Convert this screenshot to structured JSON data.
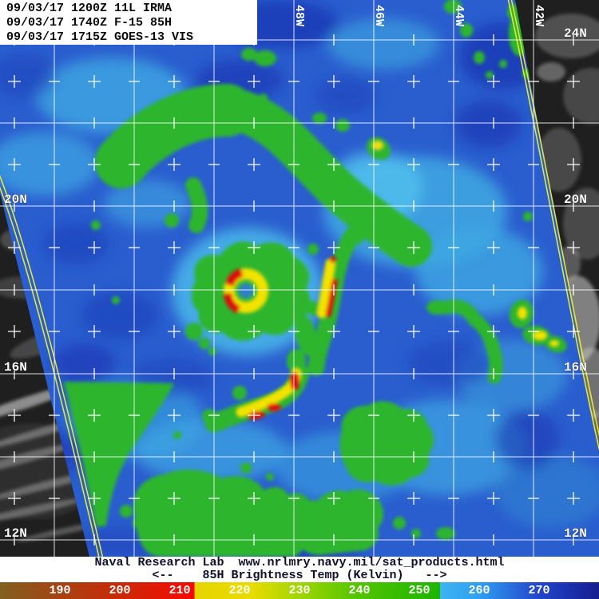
{
  "header": {
    "lines": [
      "09/03/17 1200Z 11L IRMA",
      "09/03/17 1740Z F-15 85H",
      "09/03/17 1715Z GOES-13 VIS"
    ]
  },
  "map": {
    "description": "SSMIS 85H microwave swath of Hurricane Irma over GOES-13 visible imagery",
    "lon_labels": [
      "48W",
      "46W",
      "44W",
      "42W"
    ],
    "lat_labels_left": [
      "20N",
      "16N",
      "12N"
    ],
    "lat_labels_right": [
      "24N",
      "20N",
      "16N",
      "12N"
    ]
  },
  "footer": {
    "line1": "Naval Research Lab  www.nrlmry.navy.mil/sat_products.html",
    "line2": "<--    85H Brightness Temp (Kelvin)   -->"
  },
  "colorbar": {
    "labels": [
      "190",
      "200",
      "210",
      "220",
      "230",
      "240",
      "250",
      "260",
      "270"
    ],
    "unit": "Kelvin",
    "colors": {
      "brown": "#806020",
      "red": "#ef0f02",
      "yellow": "#e8dc00",
      "green": "#1cb400",
      "cyan": "#3cb4f2",
      "blue": "#161d8e"
    }
  },
  "theme": {
    "swath_base_blue": "#2a5ecf",
    "cold_green": "#2eb52e",
    "colder_yellow": "#f2e204",
    "coldest_red": "#dd1010",
    "grid_white": "#ffffff",
    "swath_edge_yellow": "#e6e635",
    "vis_background_gray": "#1f1f1f"
  }
}
